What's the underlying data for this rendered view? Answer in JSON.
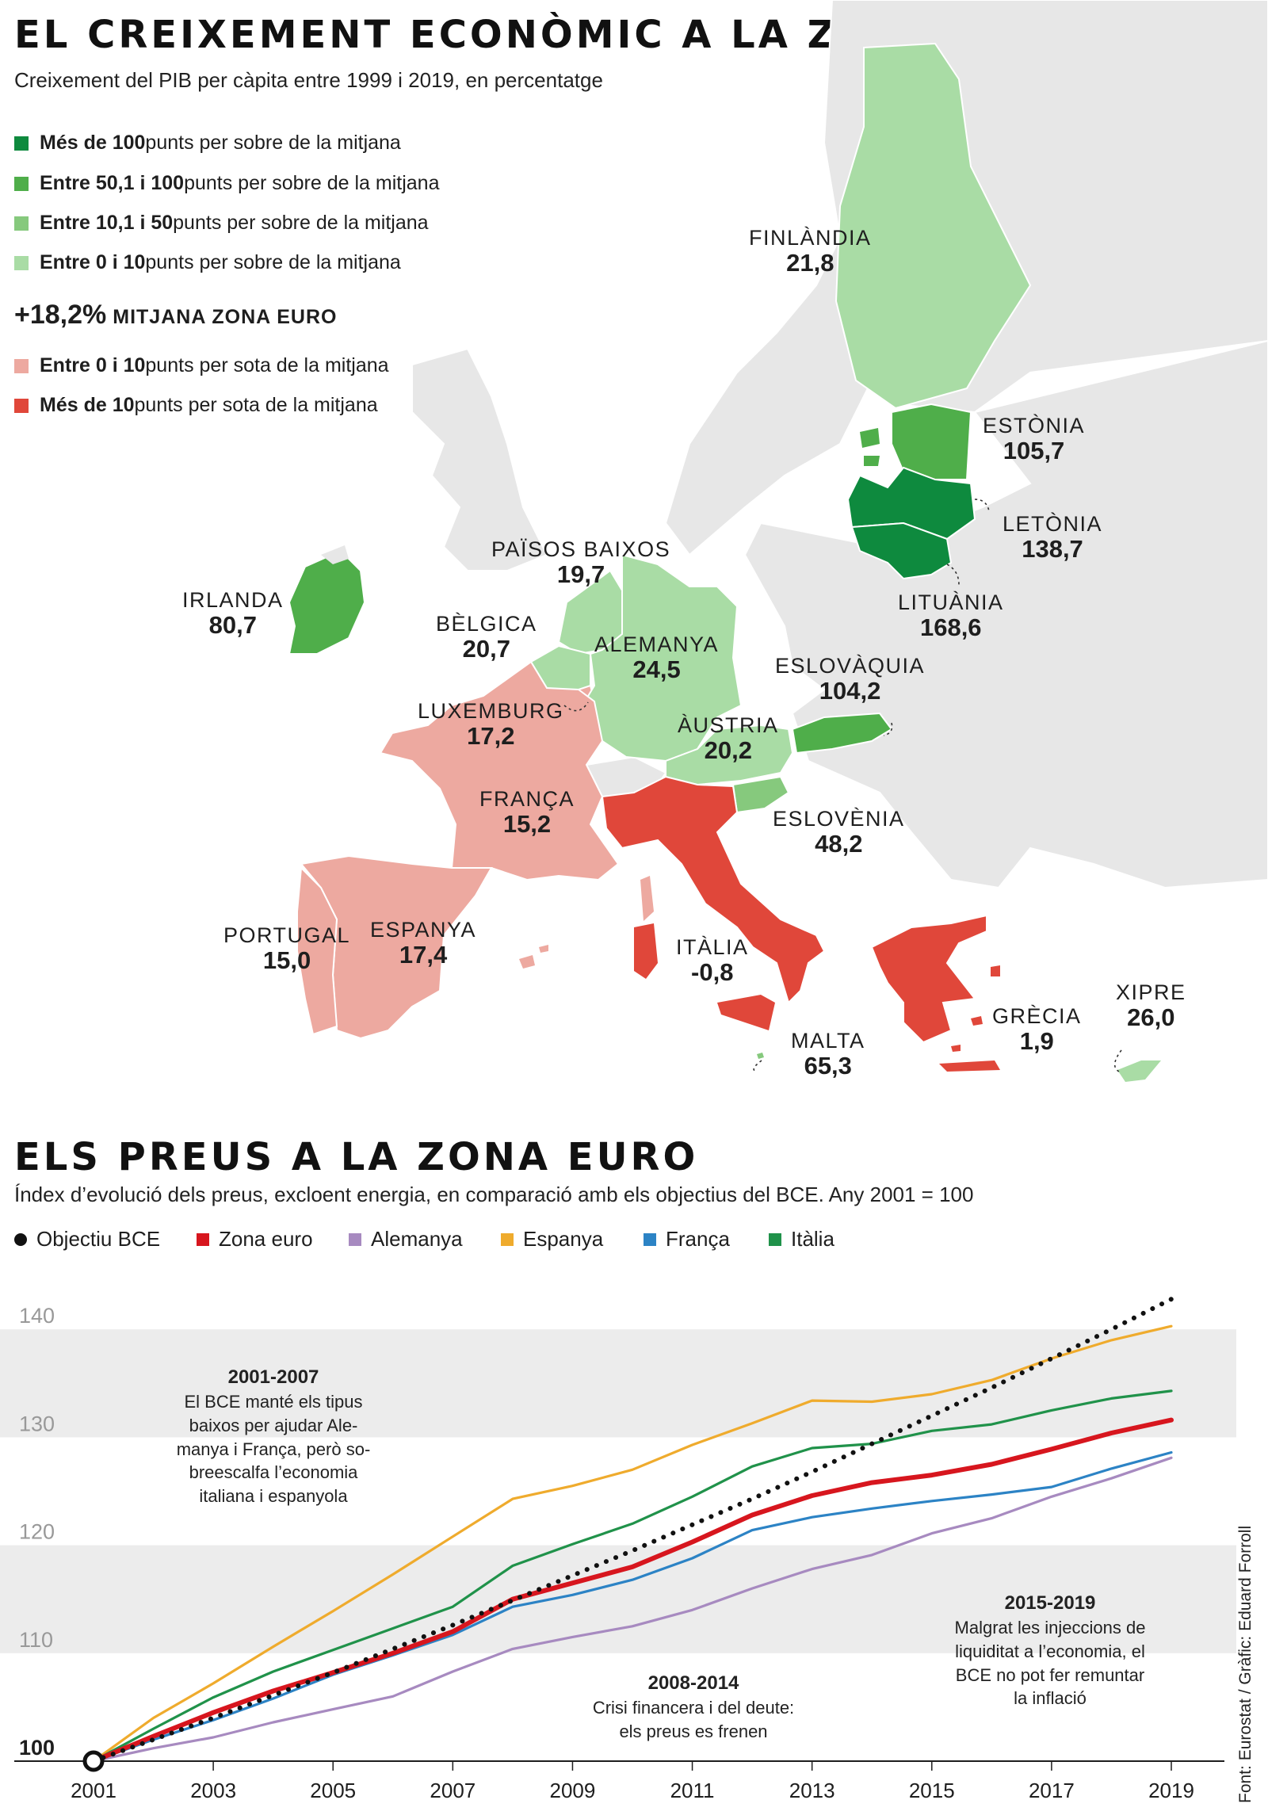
{
  "map": {
    "title": "EL CREIXEMENT ECONÒMIC A LA ZONA EURO",
    "subtitle": "Creixement del PIB per càpita entre 1999 i 2019, en percentatge",
    "legend": [
      {
        "bold": "Més de 100",
        "rest": " punts per sobre de la mitjana",
        "color": "#0e8a3e"
      },
      {
        "bold": "Entre 50,1 i 100",
        "rest": " punts per sobre de la mitjana",
        "color": "#4fae4a"
      },
      {
        "bold": "Entre 10,1 i 50",
        "rest": " punts per sobre de la mitjana",
        "color": "#86c97d"
      },
      {
        "bold": "Entre 0 i 10",
        "rest": " punts per sobre de la mitjana",
        "color": "#a9dca5"
      }
    ],
    "average": {
      "value": "+18,2%",
      "label": "MITJANA ZONA EURO"
    },
    "legend_below": [
      {
        "bold": "Entre 0 i 10",
        "rest": " punts per sota de la mitjana",
        "color": "#eda9a0"
      },
      {
        "bold": "Més de 10",
        "rest": " punts per sota de la mitjana",
        "color": "#e0473a"
      }
    ],
    "countries": [
      {
        "name": "FINLÀNDIA",
        "value": "21,8"
      },
      {
        "name": "ESTÒNIA",
        "value": "105,7"
      },
      {
        "name": "LETÒNIA",
        "value": "138,7"
      },
      {
        "name": "LITUÀNIA",
        "value": "168,6"
      },
      {
        "name": "IRLANDA",
        "value": "80,7"
      },
      {
        "name": "PAÏSOS BAIXOS",
        "value": "19,7"
      },
      {
        "name": "BÈLGICA",
        "value": "20,7"
      },
      {
        "name": "ALEMANYA",
        "value": "24,5"
      },
      {
        "name": "ESLOVÀQUIA",
        "value": "104,2"
      },
      {
        "name": "LUXEMBURG",
        "value": "17,2"
      },
      {
        "name": "ÀUSTRIA",
        "value": "20,2"
      },
      {
        "name": "FRANÇA",
        "value": "15,2"
      },
      {
        "name": "ESLOVÈNIA",
        "value": "48,2"
      },
      {
        "name": "PORTUGAL",
        "value": "15,0"
      },
      {
        "name": "ESPANYA",
        "value": "17,4"
      },
      {
        "name": "ITÀLIA",
        "value": "-0,8"
      },
      {
        "name": "XIPRE",
        "value": "26,0"
      },
      {
        "name": "GRÈCIA",
        "value": "1,9"
      },
      {
        "name": "MALTA",
        "value": "65,3"
      }
    ]
  },
  "prices": {
    "title": "ELS PREUS A LA ZONA EURO",
    "subtitle": "Índex d’evolució dels preus, excloent energia, en comparació amb els objectius del BCE. Any 2001 = 100",
    "annotations": [
      {
        "heading": "2001-2007",
        "text": "El BCE manté els tipus\nbaixos per ajudar Ale-\nmanya i França, però so-\nbreescalfa l’economia\nitaliana i espanyola"
      },
      {
        "heading": "2008-2014",
        "text": "Crisi financera i del deute:\nels preus es frenen"
      },
      {
        "heading": "2015-2019",
        "text": "Malgrat les injeccions de\nliquiditat a l’economia, el\nBCE no pot fer remuntar\nla inflació"
      }
    ],
    "source": "Font: Eurostat / Gràfic: Eduard Forroll"
  },
  "chart_data": {
    "type": "line",
    "title": "ELS PREUS A LA ZONA EURO",
    "xlabel": "",
    "ylabel": "",
    "x": [
      2001,
      2002,
      2003,
      2004,
      2005,
      2006,
      2007,
      2008,
      2009,
      2010,
      2011,
      2012,
      2013,
      2014,
      2015,
      2016,
      2017,
      2018,
      2019
    ],
    "xticks": [
      "2001",
      "2003",
      "2005",
      "2007",
      "2009",
      "2011",
      "2013",
      "2015",
      "2017",
      "2019"
    ],
    "yticks": [
      "100",
      "110",
      "120",
      "130",
      "140"
    ],
    "ylim": [
      100,
      142
    ],
    "grid": "alternating bands",
    "series": [
      {
        "name": "Objectiu BCE",
        "color": "#111111",
        "style": "dotted",
        "values": [
          100,
          102,
          104.0,
          106.1,
          108.2,
          110.4,
          112.6,
          114.9,
          117.2,
          119.5,
          121.9,
          124.3,
          126.8,
          129.4,
          132.0,
          134.6,
          137.3,
          140.0,
          142.8
        ]
      },
      {
        "name": "Zona euro",
        "color": "#d7161e",
        "style": "thick",
        "values": [
          100,
          102.3,
          104.5,
          106.5,
          108.2,
          110.0,
          112.0,
          115.0,
          116.5,
          118.0,
          120.3,
          122.8,
          124.6,
          125.8,
          126.5,
          127.5,
          128.9,
          130.4,
          131.6
        ]
      },
      {
        "name": "Alemanya",
        "color": "#a78ac0",
        "values": [
          100,
          101.2,
          102.2,
          103.6,
          104.8,
          106.0,
          108.3,
          110.4,
          111.5,
          112.5,
          114.0,
          116.0,
          117.8,
          119.1,
          121.1,
          122.5,
          124.5,
          126.2,
          128.1
        ]
      },
      {
        "name": "Espanya",
        "color": "#efab2d",
        "values": [
          100,
          104.0,
          107.2,
          110.6,
          113.9,
          117.3,
          120.8,
          124.3,
          125.5,
          127.0,
          129.3,
          131.3,
          133.4,
          133.3,
          134.0,
          135.3,
          137.3,
          139.0,
          140.3
        ]
      },
      {
        "name": "França",
        "color": "#2c83c5",
        "values": [
          100,
          102.0,
          103.8,
          105.8,
          108.0,
          109.8,
          111.7,
          114.3,
          115.4,
          116.8,
          118.8,
          121.4,
          122.6,
          123.4,
          124.1,
          124.7,
          125.4,
          127.1,
          128.6
        ]
      },
      {
        "name": "Itàlia",
        "color": "#20924a",
        "values": [
          100,
          103.0,
          105.9,
          108.3,
          110.3,
          112.3,
          114.3,
          118.1,
          120.1,
          122.0,
          124.5,
          127.3,
          129.0,
          129.4,
          130.6,
          131.2,
          132.5,
          133.6,
          134.3
        ]
      }
    ]
  }
}
